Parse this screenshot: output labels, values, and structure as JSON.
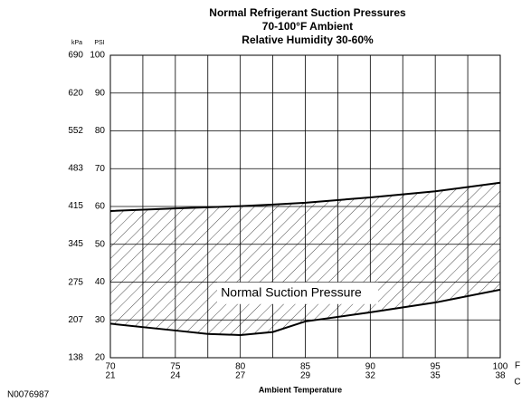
{
  "chart_data": {
    "type": "band",
    "title": [
      "Normal Refrigerant Suction Pressures",
      "70-100°F Ambient",
      "Relative Humidity 30-60%"
    ],
    "x_label": "Ambient Temperature",
    "x_unit": "F",
    "x2_unit": "C",
    "y_label": "PSI",
    "y2_label": "kPa",
    "x": [
      70,
      75,
      77.5,
      80,
      82.5,
      85,
      90,
      95,
      100
    ],
    "series": [
      {
        "color": "#000000",
        "values": [
          29,
          27.2,
          26.3,
          26,
          26.8,
          29.6,
          32,
          34.6,
          38
        ]
      },
      {
        "color": "#000000",
        "values": [
          58.8,
          59.5,
          59.8,
          60.1,
          60.5,
          61,
          62.4,
          64,
          66.3
        ]
      }
    ],
    "band_label": "Normal Suction Pressure",
    "xlim": [
      70,
      100
    ],
    "xticks": [
      70,
      75,
      80,
      85,
      90,
      95,
      100
    ],
    "x2ticks": [
      21,
      24,
      27,
      29,
      32,
      35,
      38
    ],
    "xgrid": [
      72.5,
      77.5,
      82.5,
      87.5,
      92.5,
      97.5
    ],
    "ylim": [
      20,
      100
    ],
    "yticks": [
      20,
      30,
      40,
      50,
      60,
      70,
      80,
      90,
      100
    ],
    "y2lim": [
      137.9,
      689.5
    ],
    "y2ticks": [
      138,
      207,
      275,
      345,
      415,
      483,
      552,
      620,
      690
    ],
    "grid": true,
    "figure_id": "N0076987"
  }
}
